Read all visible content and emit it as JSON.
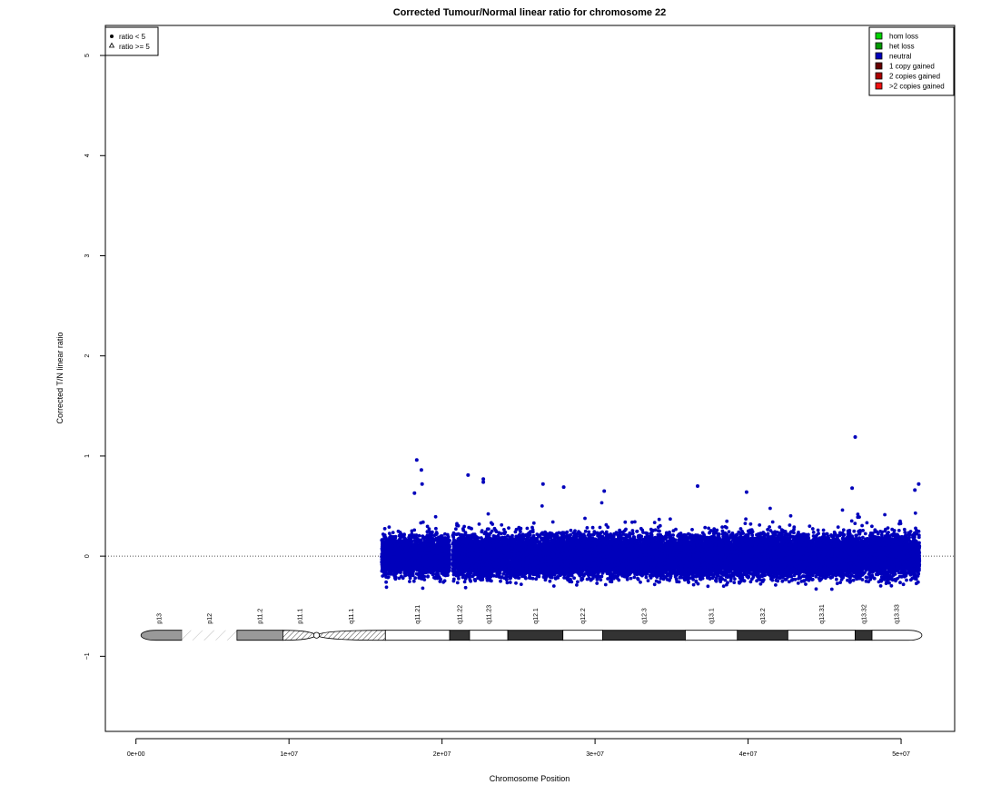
{
  "chart_data": {
    "type": "scatter",
    "title": "Corrected Tumour/Normal linear ratio for chromosome  22",
    "xlabel": "Chromosome Position",
    "ylabel": "Corrected T/N linear ratio",
    "xlim": [
      -2000000,
      53500000
    ],
    "ylim": [
      -1.75,
      5.3
    ],
    "x_ticks": [
      0,
      10000000,
      20000000,
      30000000,
      40000000,
      50000000
    ],
    "x_tick_labels": [
      "0e+00",
      "1e+07",
      "2e+07",
      "3e+07",
      "4e+07",
      "5e+07"
    ],
    "y_ticks": [
      -1,
      0,
      1,
      2,
      3,
      4,
      5
    ],
    "y_tick_labels": [
      "−1",
      "0",
      "1",
      "2",
      "3",
      "4",
      "5"
    ],
    "reference_line": {
      "y": 0,
      "style": "dotted",
      "color": "#555555"
    },
    "shape_legend": {
      "placement": "top-left",
      "items": [
        {
          "symbol": "filled-circle",
          "label": "ratio < 5"
        },
        {
          "symbol": "open-triangle",
          "label": "ratio >= 5"
        }
      ]
    },
    "color_legend": {
      "placement": "top-right",
      "items": [
        {
          "label": "hom loss",
          "color": "#00d400"
        },
        {
          "label": "het loss",
          "color": "#009900"
        },
        {
          "label": "neutral",
          "color": "#0000bb"
        },
        {
          "label": "1 copy gained",
          "color": "#660000"
        },
        {
          "label": "2 copies gained",
          "color": "#aa0000"
        },
        {
          "label": ">2 copies gained",
          "color": "#ee1111"
        }
      ]
    },
    "series": [
      {
        "status": "neutral",
        "color": "#0000bb",
        "segments": [
          {
            "x_start": 16050000,
            "x_end": 20500000,
            "center": 0.0,
            "spread": 0.3
          },
          {
            "x_start": 20700000,
            "x_end": 51200000,
            "center": 0.0,
            "spread": 0.32
          }
        ],
        "outliers": [
          {
            "x": 18350000,
            "y": 0.96
          },
          {
            "x": 18650000,
            "y": 0.86
          },
          {
            "x": 18700000,
            "y": 0.72
          },
          {
            "x": 18200000,
            "y": 0.63
          },
          {
            "x": 21700000,
            "y": 0.81
          },
          {
            "x": 22700000,
            "y": 0.77
          },
          {
            "x": 22700000,
            "y": 0.74
          },
          {
            "x": 26600000,
            "y": 0.72
          },
          {
            "x": 27950000,
            "y": 0.69
          },
          {
            "x": 30600000,
            "y": 0.65
          },
          {
            "x": 36700000,
            "y": 0.7
          },
          {
            "x": 39900000,
            "y": 0.64
          },
          {
            "x": 46800000,
            "y": 0.68
          },
          {
            "x": 47000000,
            "y": 1.19
          },
          {
            "x": 51150000,
            "y": 0.72
          },
          {
            "x": 50900000,
            "y": 0.66
          }
        ]
      }
    ],
    "ideogram": {
      "y": -0.79,
      "centromere_x": 11800000,
      "bands": [
        {
          "name": "p13",
          "start": 0,
          "end": 3000000,
          "stain": "stalk-tip"
        },
        {
          "name": "p12",
          "start": 3000000,
          "end": 6600000,
          "stain": "stalk"
        },
        {
          "name": "p11.2",
          "start": 6600000,
          "end": 9600000,
          "stain": "gpos50"
        },
        {
          "name": "p11.1",
          "start": 9600000,
          "end": 11800000,
          "stain": "acen"
        },
        {
          "name": "q11.1",
          "start": 11800000,
          "end": 16300000,
          "stain": "acen"
        },
        {
          "name": "q11.21",
          "start": 16300000,
          "end": 20500000,
          "stain": "gneg"
        },
        {
          "name": "q11.22",
          "start": 20500000,
          "end": 21800000,
          "stain": "gpos100"
        },
        {
          "name": "q11.23",
          "start": 21800000,
          "end": 24300000,
          "stain": "gneg"
        },
        {
          "name": "q12.1",
          "start": 24300000,
          "end": 27900000,
          "stain": "gpos100"
        },
        {
          "name": "q12.2",
          "start": 27900000,
          "end": 30500000,
          "stain": "gneg"
        },
        {
          "name": "q12.3",
          "start": 30500000,
          "end": 35900000,
          "stain": "gpos100"
        },
        {
          "name": "q13.1",
          "start": 35900000,
          "end": 39300000,
          "stain": "gneg"
        },
        {
          "name": "q13.2",
          "start": 39300000,
          "end": 42600000,
          "stain": "gpos100"
        },
        {
          "name": "q13.31",
          "start": 42600000,
          "end": 47000000,
          "stain": "gneg"
        },
        {
          "name": "q13.32",
          "start": 47000000,
          "end": 48100000,
          "stain": "gpos100"
        },
        {
          "name": "q13.33",
          "start": 48100000,
          "end": 51300000,
          "stain": "gneg"
        }
      ]
    }
  }
}
